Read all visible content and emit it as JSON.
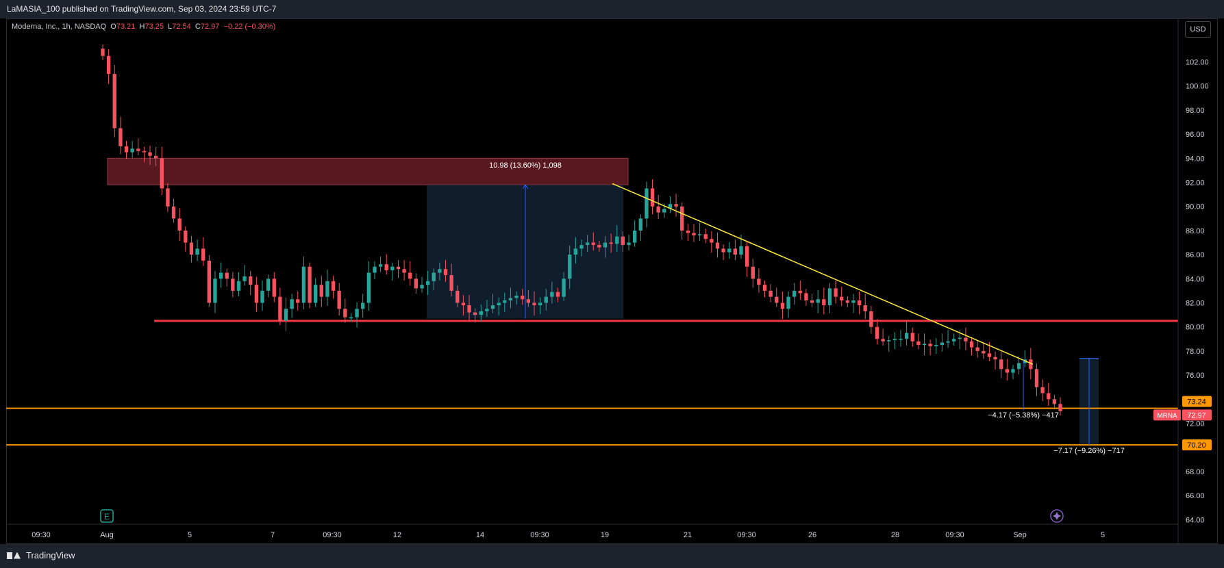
{
  "header": {
    "publisher_line": "LaMASIA_100 published on TradingView.com, Sep 03, 2024 23:59 UTC-7"
  },
  "legend": {
    "symbol": "Moderna, Inc., 1h, NASDAQ",
    "o_label": "O",
    "o": "73.21",
    "h_label": "H",
    "h": "73.25",
    "l_label": "L",
    "l": "72.54",
    "c_label": "C",
    "c": "72.97",
    "change": "−0.22 (−0.30%)"
  },
  "currency_button": "USD",
  "footer": {
    "brand": "TradingView"
  },
  "colors": {
    "up": "#26a69a",
    "down": "#f7525f",
    "support": "#f23645",
    "level": "#ff9800",
    "trend": "#ffeb3b",
    "zone": "#5c1a22",
    "measure": "#1c3552"
  },
  "chart_data": {
    "type": "candlestick",
    "symbol": "MRNA",
    "interval": "1h",
    "ylim": [
      63.0,
      104.0
    ],
    "y_ticks": [
      "64.00",
      "66.00",
      "68.00",
      "70.00",
      "72.00",
      "74.00",
      "76.00",
      "78.00",
      "80.00",
      "82.00",
      "84.00",
      "86.00",
      "88.00",
      "90.00",
      "92.00",
      "94.00",
      "96.00",
      "98.00",
      "100.00",
      "102.00"
    ],
    "x_ticks": [
      "09:30",
      "Aug",
      "5",
      "7",
      "09:30",
      "12",
      "14",
      "09:30",
      "19",
      "21",
      "09:30",
      "26",
      "28",
      "09:30",
      "Sep",
      "5"
    ],
    "price_labels": [
      {
        "text": "73.24",
        "value": 73.24,
        "color": "#ff9800"
      },
      {
        "text": "72.97",
        "value": 72.97,
        "color": "#f7525f",
        "tag": "MRNA"
      },
      {
        "text": "70.20",
        "value": 70.2,
        "color": "#ff9800"
      }
    ],
    "horizontal_levels": [
      {
        "value": 73.24,
        "color": "#ff9800"
      },
      {
        "value": 70.2,
        "color": "#ff9800"
      },
      {
        "value": 80.5,
        "color": "#f23645"
      }
    ],
    "resistance_zone": {
      "low": 91.8,
      "high": 94.0
    },
    "trendline": {
      "from": 91.9,
      "to": 76.9
    },
    "annotations": [
      {
        "text": "10.98 (13.60%) 1,098",
        "from": 80.7,
        "to": 91.8
      },
      {
        "text": "−4.17 (−5.38%) −417",
        "from": 77.3,
        "to": 73.1
      },
      {
        "text": "−7.17 (−9.26%) −717",
        "from": 77.4,
        "to": 70.2
      }
    ],
    "events": [
      "E"
    ],
    "closes": [
      102.5,
      101.0,
      96.5,
      95.0,
      94.5,
      94.8,
      94.6,
      94.5,
      94.2,
      94.0,
      91.5,
      90.0,
      89.0,
      88.0,
      87.0,
      86.0,
      86.5,
      85.5,
      82.0,
      84.0,
      84.5,
      84.0,
      83.0,
      83.8,
      84.2,
      83.5,
      82.0,
      83.0,
      84.0,
      82.5,
      80.5,
      81.5,
      82.3,
      82.0,
      85.0,
      82.0,
      83.5,
      82.5,
      83.8,
      83.0,
      81.5,
      80.8,
      80.8,
      81.5,
      82.0,
      84.5,
      85.0,
      85.2,
      84.7,
      85.0,
      84.8,
      84.5,
      84.0,
      83.2,
      83.5,
      83.8,
      84.5,
      84.8,
      84.3,
      83.0,
      82.0,
      81.8,
      81.2,
      81.0,
      81.3,
      81.5,
      81.8,
      82.0,
      82.2,
      82.4,
      82.6,
      82.3,
      82.0,
      81.8,
      82.0,
      82.5,
      82.9,
      82.5,
      84.0,
      86.0,
      86.5,
      86.8,
      87.0,
      86.8,
      86.6,
      87.0,
      86.9,
      87.5,
      86.8,
      87.0,
      88.0,
      89.0,
      91.5,
      90.0,
      89.5,
      89.8,
      90.2,
      90.0,
      88.0,
      87.8,
      87.6,
      87.7,
      87.3,
      87.0,
      86.5,
      86.2,
      86.5,
      86.0,
      86.7,
      85.0,
      84.0,
      83.5,
      83.0,
      82.5,
      82.0,
      81.5,
      82.5,
      83.0,
      82.8,
      82.2,
      82.0,
      82.3,
      81.8,
      83.2,
      82.5,
      82.2,
      82.0,
      82.2,
      81.8,
      81.3,
      80.0,
      79.0,
      78.8,
      78.9,
      79.0,
      79.0,
      79.5,
      78.8,
      78.5,
      78.6,
      78.4,
      78.5,
      78.7,
      78.8,
      79.0,
      79.1,
      78.8,
      78.3,
      78.0,
      77.8,
      77.5,
      77.3,
      76.5,
      76.2,
      76.5,
      77.0,
      77.3,
      76.5,
      75.0,
      74.5,
      74.0,
      73.6,
      73.0
    ]
  }
}
